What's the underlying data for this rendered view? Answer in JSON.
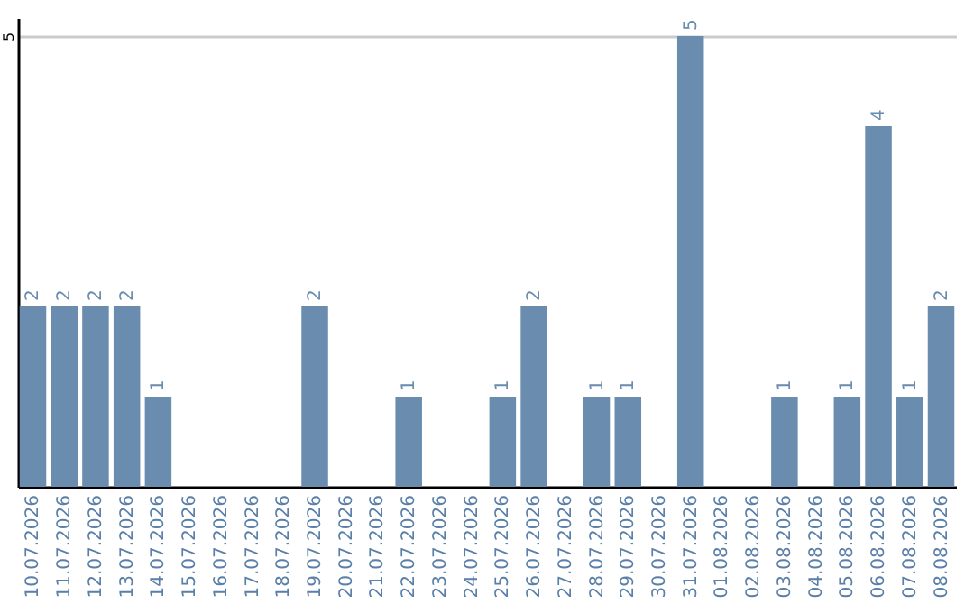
{
  "chart_data": {
    "type": "bar",
    "categories": [
      "10.07.2026",
      "11.07.2026",
      "12.07.2026",
      "13.07.2026",
      "14.07.2026",
      "15.07.2026",
      "16.07.2026",
      "17.07.2026",
      "18.07.2026",
      "19.07.2026",
      "20.07.2026",
      "21.07.2026",
      "22.07.2026",
      "23.07.2026",
      "24.07.2026",
      "25.07.2026",
      "26.07.2026",
      "27.07.2026",
      "28.07.2026",
      "29.07.2026",
      "30.07.2026",
      "31.07.2026",
      "01.08.2026",
      "02.08.2026",
      "03.08.2026",
      "04.08.2026",
      "05.08.2026",
      "06.08.2026",
      "07.08.2026",
      "08.08.2026"
    ],
    "values": [
      2,
      2,
      2,
      2,
      1,
      0,
      0,
      0,
      0,
      2,
      0,
      0,
      1,
      0,
      0,
      1,
      2,
      0,
      1,
      1,
      0,
      5,
      0,
      0,
      1,
      0,
      1,
      4,
      1,
      2
    ],
    "value_labels": [
      "2",
      "2",
      "2",
      "2",
      "1",
      null,
      null,
      null,
      null,
      "2",
      null,
      null,
      "1",
      null,
      null,
      "1",
      "2",
      null,
      "1",
      "1",
      null,
      "5",
      null,
      null,
      "1",
      null,
      "1",
      "4",
      "1",
      "2"
    ],
    "color": "#6a8caf",
    "ylim": [
      0,
      5.2
    ],
    "yticks": [
      5
    ],
    "grid": "y"
  }
}
